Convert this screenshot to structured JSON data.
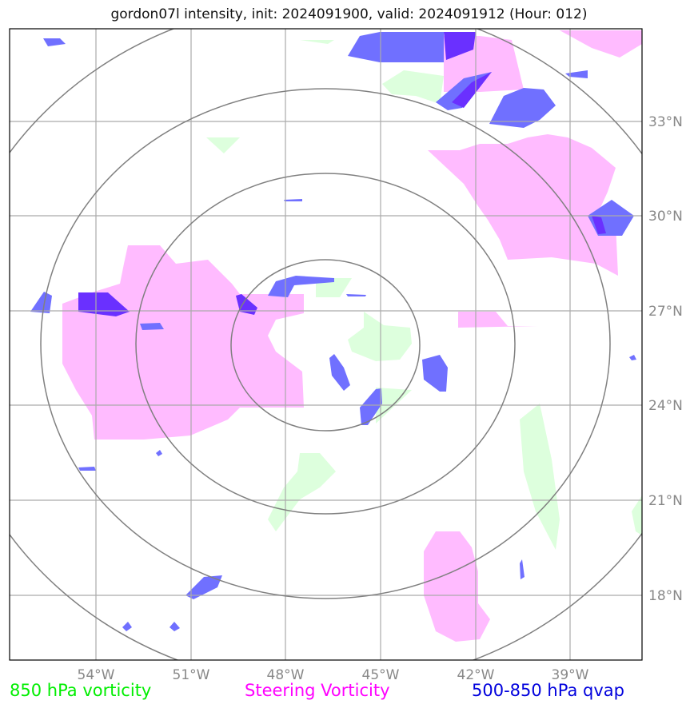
{
  "title": "gordon07l intensity, init: 2024091900, valid: 2024091912 (Hour: 012)",
  "x_ticks": [
    "54°W",
    "51°W",
    "48°W",
    "45°W",
    "42°W",
    "39°W"
  ],
  "y_ticks": [
    "33°N",
    "30°N",
    "27°N",
    "24°N",
    "21°N",
    "18°N"
  ],
  "legend": {
    "green": "850 hPa vorticity",
    "magenta": "Steering Vorticity",
    "blue": "500-850 hPa qvap"
  },
  "colors": {
    "green_fill": "#ddffdd",
    "magenta_fill": "#ffbbff",
    "blue_fill": "#7070ff",
    "blue_dark": "#6a30ff",
    "grid": "#aaaaaa",
    "rings": "#808080",
    "tick_text": "#888888"
  },
  "map": {
    "projection": "lat/lon",
    "lon_range": [
      "56.7°W",
      "36.8°W"
    ],
    "lat_range": [
      "15.9°N",
      "35.9°N"
    ],
    "center": {
      "lon": "46.7°W",
      "lat": "26.1°N"
    },
    "range_rings": 4
  }
}
